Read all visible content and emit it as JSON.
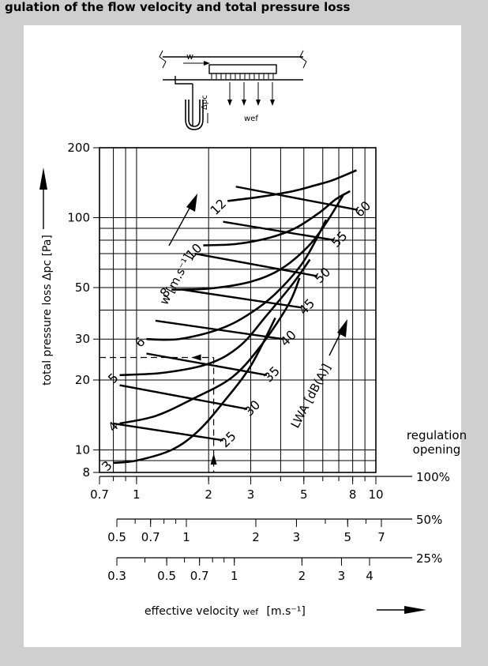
{
  "header_text": "gulation of the flow velocity and total pressure loss",
  "schematic": {
    "w_label": "w",
    "dp_label": "Δpc",
    "wef_label": "wef"
  },
  "chart_data": {
    "type": "line",
    "title": "",
    "xlabel": "effective velocity",
    "xsymbol": "wef",
    "xunit": "[m.s⁻¹]",
    "ylabel": "total pressure loss",
    "ysymbol": "Δpc",
    "yunit": "[Pa]",
    "yscale": "log",
    "xscale": "log",
    "ylim": [
      8,
      200
    ],
    "yticks": [
      8,
      10,
      20,
      30,
      50,
      100,
      200
    ],
    "x_axes": [
      {
        "opening": "100%",
        "range": [
          0.7,
          10
        ],
        "ticks": [
          0.7,
          1,
          2,
          3,
          5,
          8,
          10
        ]
      },
      {
        "opening": "50%",
        "range": [
          0.5,
          7
        ],
        "ticks": [
          0.5,
          0.7,
          1,
          2,
          3,
          5,
          7
        ]
      },
      {
        "opening": "25%",
        "range": [
          0.3,
          4
        ],
        "ticks": [
          0.3,
          0.5,
          0.7,
          1,
          2,
          3,
          4
        ]
      }
    ],
    "regulation_label": [
      "regulation",
      "opening"
    ],
    "w_series_label": "w [m.s⁻¹]",
    "lwa_series_label": "LWA [dB(A)]",
    "w_series": [
      {
        "name": "3",
        "x": [
          0.8,
          1.0,
          1.4,
          1.8,
          2.3,
          3.0,
          3.8
        ],
        "y": [
          8.8,
          9.0,
          10.0,
          12.0,
          16.0,
          23.0,
          37.0
        ]
      },
      {
        "name": "4",
        "x": [
          0.85,
          1.2,
          1.7,
          2.5,
          3.3,
          4.3,
          4.8
        ],
        "y": [
          13.0,
          14.0,
          16.5,
          20.5,
          28.0,
          42.0,
          55.0
        ]
      },
      {
        "name": "5",
        "x": [
          0.85,
          1.3,
          2.0,
          2.7,
          3.5,
          4.5,
          5.3
        ],
        "y": [
          21.0,
          21.5,
          23.5,
          28.0,
          38.0,
          52.0,
          66.0
        ]
      },
      {
        "name": "6",
        "x": [
          1.1,
          1.5,
          2.2,
          2.9,
          3.8,
          5.0,
          6.2
        ],
        "y": [
          30.0,
          30.0,
          33.0,
          38.0,
          47.0,
          65.0,
          98.0
        ]
      },
      {
        "name": "8",
        "x": [
          1.4,
          2.0,
          3.0,
          4.0,
          5.2,
          6.2,
          7.3
        ],
        "y": [
          49.0,
          49.5,
          53.0,
          60.0,
          75.0,
          95.0,
          125.0
        ]
      },
      {
        "name": "10",
        "x": [
          1.9,
          2.6,
          3.6,
          4.6,
          5.8,
          6.8,
          7.8
        ],
        "y": [
          76.0,
          77.0,
          82.0,
          90.0,
          105.0,
          120.0,
          130.0
        ]
      },
      {
        "name": "12",
        "x": [
          2.4,
          3.3,
          4.5,
          5.6,
          6.6,
          8.3
        ],
        "y": [
          118.0,
          123.0,
          130.0,
          138.0,
          145.0,
          160.0
        ]
      }
    ],
    "lwa_series": [
      {
        "name": "25",
        "x": [
          0.8,
          2.3
        ],
        "y": [
          13.0,
          11.0
        ]
      },
      {
        "name": "30",
        "x": [
          0.85,
          2.9
        ],
        "y": [
          19.0,
          15.0
        ]
      },
      {
        "name": "35",
        "x": [
          1.1,
          3.5
        ],
        "y": [
          26.0,
          21.0
        ]
      },
      {
        "name": "40",
        "x": [
          1.2,
          4.1
        ],
        "y": [
          36.0,
          30.0
        ]
      },
      {
        "name": "45",
        "x": [
          1.55,
          4.9
        ],
        "y": [
          49.0,
          41.0
        ]
      },
      {
        "name": "50",
        "x": [
          1.75,
          5.7
        ],
        "y": [
          70.0,
          56.0
        ]
      },
      {
        "name": "55",
        "x": [
          2.3,
          6.7
        ],
        "y": [
          96.0,
          80.0
        ]
      },
      {
        "name": "60",
        "x": [
          2.6,
          8.4
        ],
        "y": [
          136.0,
          108.0
        ]
      }
    ],
    "example_reading": {
      "x": 2.1,
      "y": 25
    }
  },
  "colors": {
    "background": "#cfcfcf",
    "panel": "#ffffff",
    "ink": "#000000"
  }
}
